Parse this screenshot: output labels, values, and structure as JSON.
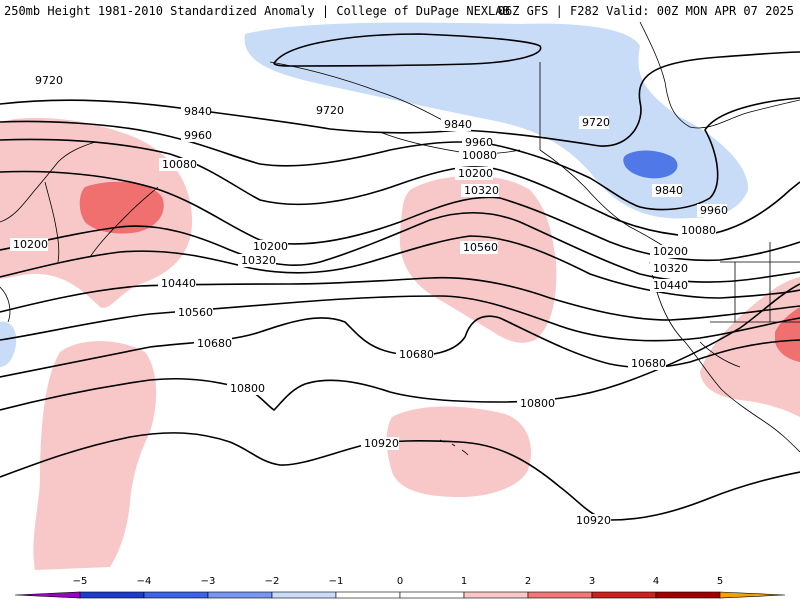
{
  "header": {
    "title": "250mb Height 1981-2010 Standardized Anomaly | College of DuPage NEXLAB",
    "run_info": "06Z GFS | F282 Valid: 00Z MON APR 07 2025"
  },
  "contours": [
    {
      "value": "9720",
      "label_count": 3
    },
    {
      "value": "9840",
      "label_count": 3
    },
    {
      "value": "9960",
      "label_count": 3
    },
    {
      "value": "10080",
      "label_count": 3
    },
    {
      "value": "10200",
      "label_count": 4
    },
    {
      "value": "10320",
      "label_count": 3
    },
    {
      "value": "10440",
      "label_count": 2
    },
    {
      "value": "10560",
      "label_count": 2
    },
    {
      "value": "10680",
      "label_count": 3
    },
    {
      "value": "10800",
      "label_count": 2
    },
    {
      "value": "10920",
      "label_count": 2
    }
  ],
  "labels": {
    "l9720a": "9720",
    "l9720b": "9720",
    "l9720c": "9720",
    "l9840a": "9840",
    "l9840b": "9840",
    "l9840c": "9840",
    "l9960a": "9960",
    "l9960b": "9960",
    "l9960c": "9960",
    "l10080a": "10080",
    "l10080b": "10080",
    "l10080c": "10080",
    "l10200a": "10200",
    "l10200b": "10200",
    "l10200c": "10200",
    "l10200d": "10200",
    "l10320a": "10320",
    "l10320b": "10320",
    "l10320c": "10320",
    "l10440a": "10440",
    "l10440b": "10440",
    "l10560a": "10560",
    "l10560b": "10560",
    "l10680a": "10680",
    "l10680b": "10680",
    "l10680c": "10680",
    "l10800a": "10800",
    "l10800b": "10800",
    "l10920a": "10920",
    "l10920b": "10920"
  },
  "colorbar": {
    "ticks": [
      "−5",
      "−4",
      "−3",
      "−2",
      "−1",
      "0",
      "1",
      "2",
      "3",
      "4",
      "5"
    ],
    "colors": [
      "#9b00c9",
      "#1e3cc8",
      "#3c64e6",
      "#7896f0",
      "#c8dcf8",
      "#ffffff",
      "#ffffff",
      "#f8c8c8",
      "#f07878",
      "#d21e1e",
      "#a00000",
      "#f5a000"
    ]
  },
  "anomaly_colors": {
    "light_blue": "#c8dcf8",
    "blue": "#5078e6",
    "light_red": "#f8c8c8",
    "red": "#f07070"
  }
}
